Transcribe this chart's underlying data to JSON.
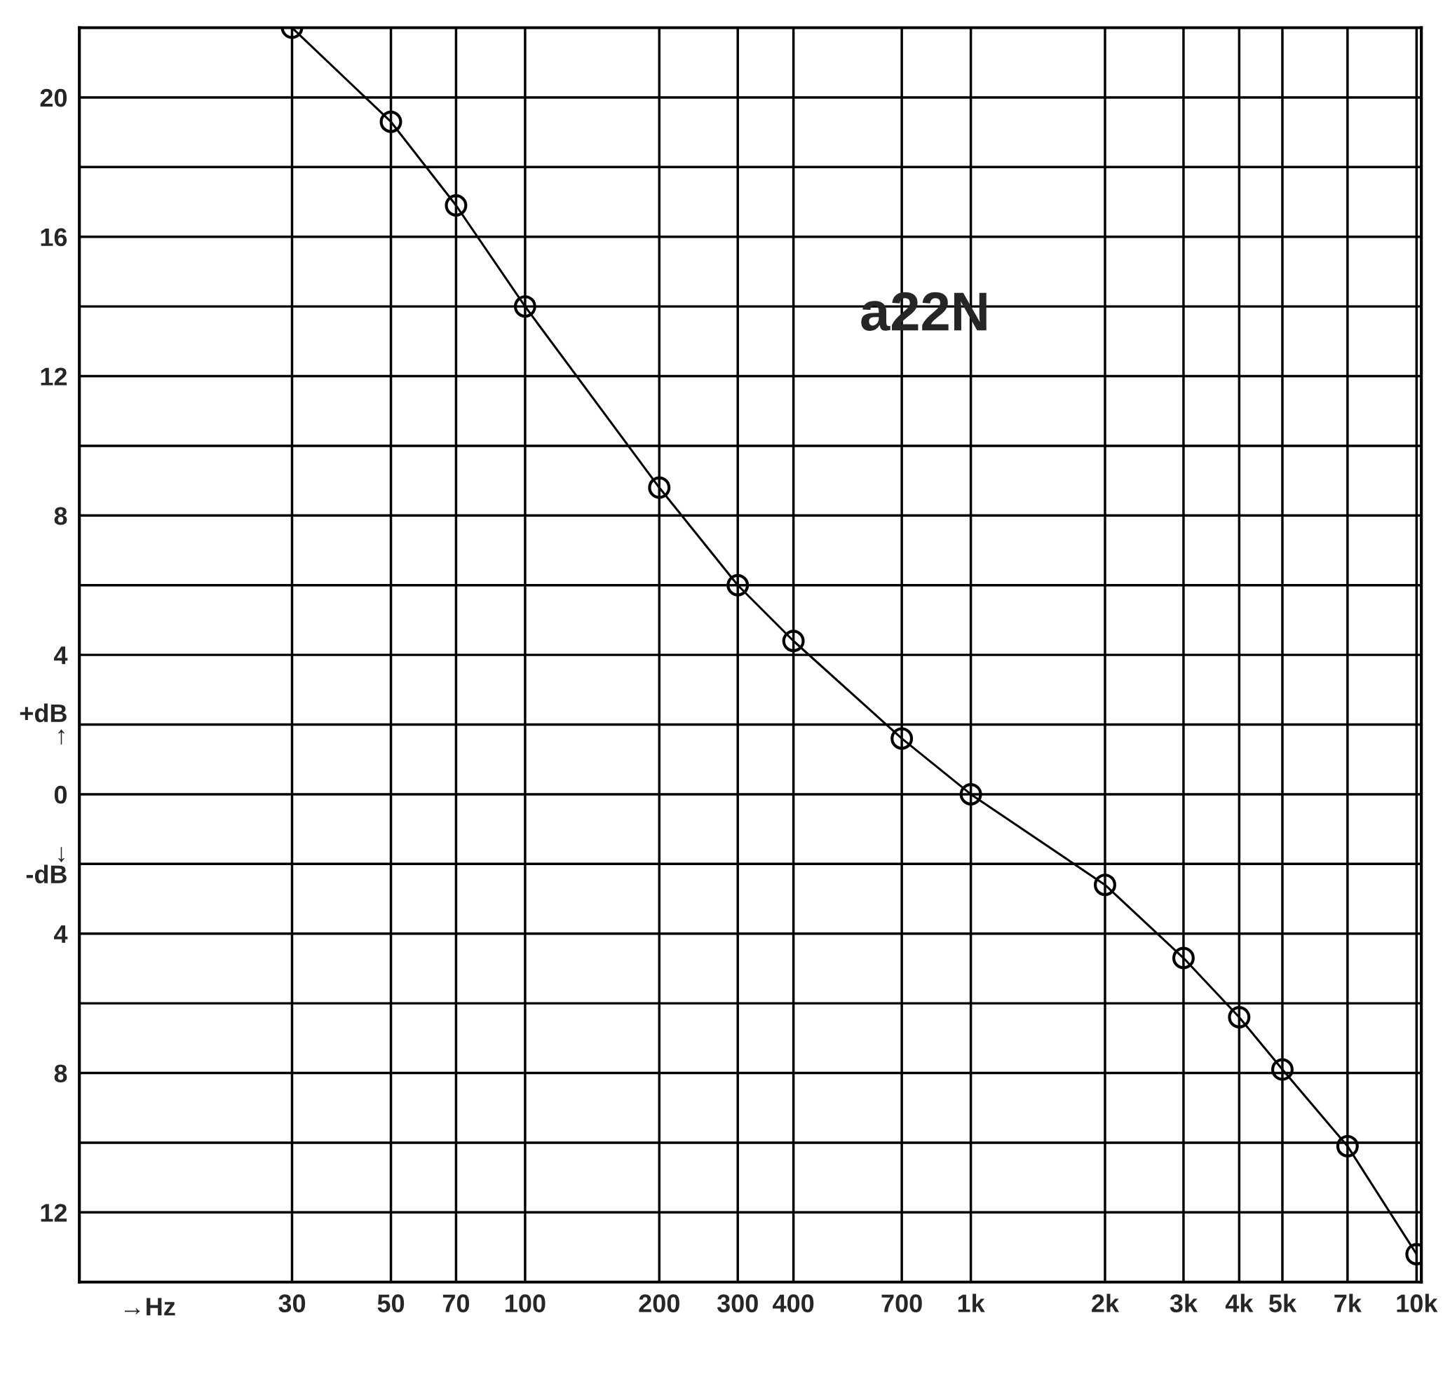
{
  "chart_data": {
    "type": "line",
    "log": "x",
    "x": [
      30,
      50,
      70,
      100,
      200,
      300,
      400,
      700,
      1000,
      2000,
      3000,
      4000,
      5000,
      7000,
      10000
    ],
    "series": [
      {
        "color": "#000000",
        "values": [
          22,
          19.3,
          16.9,
          14.0,
          8.8,
          6.0,
          4.4,
          1.6,
          0,
          -2.6,
          -4.7,
          -6.4,
          -7.9,
          -10.1,
          -13.2
        ]
      }
    ],
    "xlim": [
      10,
      10250
    ],
    "ylim": [
      -14,
      22
    ],
    "xticks": [
      30,
      50,
      70,
      100,
      200,
      300,
      400,
      700,
      {
        "value": 1000,
        "label": "1k"
      },
      {
        "value": 2000,
        "label": "2k"
      },
      {
        "value": 3000,
        "label": "3k"
      },
      {
        "value": 4000,
        "label": "4k"
      },
      {
        "value": 5000,
        "label": "5k"
      },
      {
        "value": 7000,
        "label": "7k"
      },
      {
        "value": 10000,
        "label": "10k"
      }
    ],
    "yticks": [
      {
        "value": -12,
        "label": "12"
      },
      {
        "value": -10,
        "label": null
      },
      {
        "value": -8,
        "label": "8"
      },
      {
        "value": -6,
        "label": null
      },
      {
        "value": -4,
        "label": "4"
      },
      {
        "value": -2,
        "label": "↓\n-dB"
      },
      0,
      {
        "value": 2,
        "label": "+dB\n↑"
      },
      {
        "value": 4,
        "label": "4"
      },
      {
        "value": 6,
        "label": null
      },
      {
        "value": 8,
        "label": "8"
      },
      {
        "value": 10,
        "label": null
      },
      {
        "value": 12,
        "label": "12"
      },
      {
        "value": 14,
        "label": null
      },
      {
        "value": 16,
        "label": "16"
      },
      {
        "value": 18,
        "label": null
      },
      {
        "value": 20,
        "label": "20"
      }
    ],
    "xlabel": "→Hz",
    "annotations": [
      "a22N"
    ],
    "grid": true,
    "marker": "circle",
    "line_style": "solid"
  }
}
